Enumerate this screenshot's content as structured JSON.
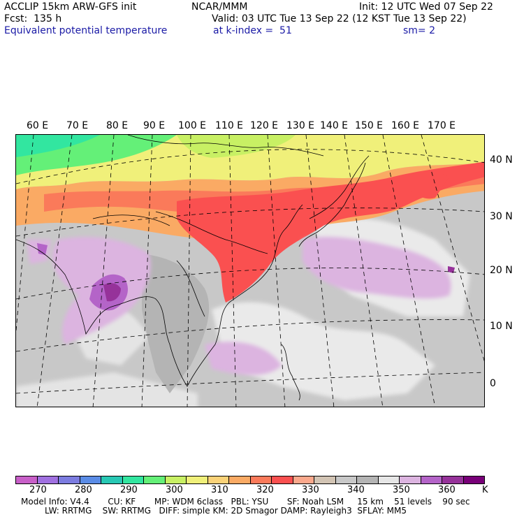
{
  "header": {
    "model": "ACCLIP 15km ARW-GFS init",
    "org": "NCAR/MMM",
    "init": "Init: 12 UTC Wed 07 Sep 22",
    "fcst": "Fcst:  135 h",
    "valid": "Valid: 03 UTC Tue 13 Sep 22 (12 KST Tue 13 Sep 22)",
    "field": "Equivalent potential temperature",
    "level": "at k-index =  51",
    "smooth": "sm= 2"
  },
  "map": {
    "lon_labels": [
      "60 E",
      "70 E",
      "80 E",
      "90 E",
      "100 E",
      "110 E",
      "120 E",
      "130 E",
      "140 E",
      "150 E",
      "160 E",
      "170 E"
    ],
    "lat_labels": [
      "40 N",
      "30 N",
      "20 N",
      "10 N",
      "0"
    ]
  },
  "colorbar": {
    "colors": [
      "#c85fc8",
      "#a070e0",
      "#7c7ce0",
      "#5a8ce6",
      "#28c8b4",
      "#32e6a0",
      "#64f078",
      "#c8f064",
      "#f0f07a",
      "#fad278",
      "#faaa64",
      "#fa7a5a",
      "#fa5050",
      "#faa88c",
      "#d2c4b4",
      "#c8c8c8",
      "#b4b4b4",
      "#e6e6e6",
      "#dcb4e0",
      "#b464c8",
      "#96329a",
      "#780078"
    ],
    "tick_labels": [
      "270",
      "280",
      "290",
      "300",
      "310",
      "320",
      "330",
      "340",
      "350",
      "360"
    ],
    "unit": "K"
  },
  "model_info": {
    "line1": "Model Info: V4.4       CU: KF       MP: WDM 6class   PBL: YSU       SF: Noah LSM     15 km    51 levels    90 sec",
    "line2": "LW: RRTMG    SW: RRTMG   DIFF: simple KM: 2D Smagor DAMP: Rayleigh3  SFLAY: MM5"
  }
}
